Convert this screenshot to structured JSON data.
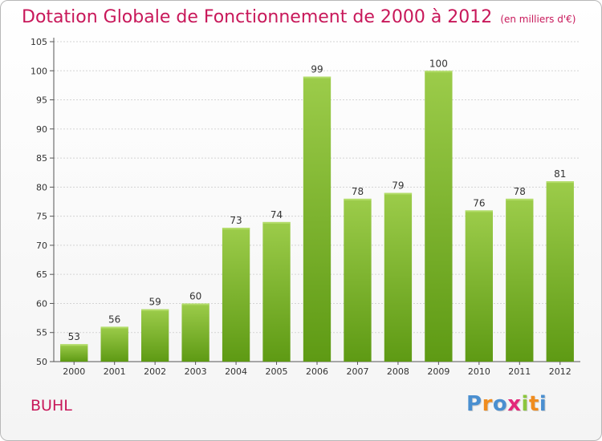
{
  "chart_data": {
    "type": "bar",
    "title": "Dotation Globale de Fonctionnement de 2000 à 2012",
    "subtitle": "(en milliers d'€)",
    "xlabel": "",
    "ylabel": "",
    "categories": [
      "2000",
      "2001",
      "2002",
      "2003",
      "2004",
      "2005",
      "2006",
      "2007",
      "2008",
      "2009",
      "2010",
      "2011",
      "2012"
    ],
    "values": [
      53,
      56,
      59,
      60,
      73,
      74,
      99,
      78,
      79,
      100,
      76,
      78,
      81
    ],
    "data_labels": [
      "53",
      "56",
      "59",
      "60",
      "73",
      "74",
      "99",
      "78",
      "79",
      "100",
      "76",
      "78",
      "81"
    ],
    "ylim": [
      50,
      105
    ],
    "yticks": [
      "50",
      "55",
      "60",
      "65",
      "70",
      "75",
      "80",
      "85",
      "90",
      "95",
      "100",
      "105"
    ],
    "grid": true,
    "bar_color_top": "#9ccc4a",
    "bar_color_bottom": "#5e9a14"
  },
  "footer": {
    "city": "BUHL",
    "logo_letters": [
      "P",
      "r",
      "o",
      "x",
      "i",
      "t",
      "i"
    ],
    "logo_colors": [
      "#4a8fd0",
      "#f08c1e",
      "#4a8fd0",
      "#e3287a",
      "#8cc63e",
      "#f08c1e",
      "#4a8fd0"
    ]
  }
}
